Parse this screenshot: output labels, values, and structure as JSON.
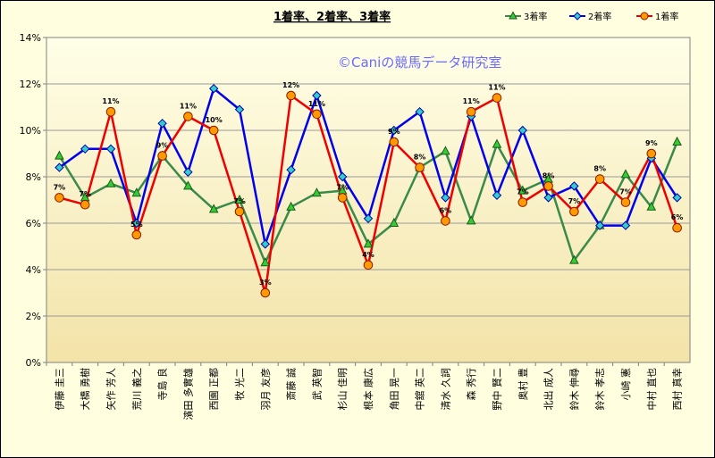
{
  "chart_data": {
    "type": "line",
    "title": "1着率、2着率、3着率",
    "watermark": "©Caniの競馬データ研究室",
    "ylim": [
      0,
      14
    ],
    "yticks": [
      "0%",
      "2%",
      "4%",
      "6%",
      "8%",
      "10%",
      "12%",
      "14%"
    ],
    "grid": true,
    "legend_position": "top-right",
    "categories": [
      "伊藤 圭三",
      "大橋 勇樹",
      "矢作 芳人",
      "荒川 義之",
      "寺島 良",
      "濱田 多實雄",
      "西園 正都",
      "牧 光二",
      "羽月 友彦",
      "斎藤 誠",
      "武 英智",
      "杉山 佳明",
      "根本 康広",
      "角田 晃一",
      "中舘 英二",
      "清水 久詞",
      "森 秀行",
      "野中 賢二",
      "奥村 豊",
      "北出 成人",
      "鈴木 伸尋",
      "鈴木 孝志",
      "小崎 憲",
      "中村 直也",
      "西村 真幸"
    ],
    "series": [
      {
        "name": "3着率",
        "color": "#3a8a4a",
        "marker": "triangle",
        "marker_fill": "#33cc33",
        "values": [
          8.9,
          7.1,
          7.7,
          7.3,
          8.9,
          7.6,
          6.6,
          7.0,
          4.3,
          6.7,
          7.3,
          7.4,
          5.1,
          6.0,
          8.4,
          9.1,
          6.1,
          9.4,
          7.4,
          7.9,
          4.4,
          5.9,
          8.1,
          6.7,
          9.5
        ],
        "labels": []
      },
      {
        "name": "2着率",
        "color": "#0000ee",
        "marker": "diamond",
        "marker_fill": "#33cccc",
        "values": [
          8.4,
          9.2,
          9.2,
          6.0,
          10.3,
          8.2,
          11.8,
          10.9,
          5.1,
          8.3,
          11.5,
          8.0,
          6.2,
          10.0,
          10.8,
          7.1,
          10.6,
          7.2,
          10.0,
          7.1,
          7.6,
          5.9,
          5.9,
          8.8,
          7.1
        ],
        "labels": []
      },
      {
        "name": "1着率",
        "color": "#ee0000",
        "marker": "circle",
        "marker_fill": "#ff9900",
        "values": [
          7.1,
          6.8,
          10.8,
          5.5,
          8.9,
          10.6,
          10.0,
          6.5,
          3.0,
          11.5,
          10.7,
          7.1,
          4.2,
          9.5,
          8.4,
          6.1,
          10.8,
          11.4,
          6.9,
          7.6,
          6.5,
          7.9,
          6.9,
          9.0,
          5.8
        ],
        "labels": [
          "7%",
          "7%",
          "11%",
          "5%",
          "9%",
          "11%",
          "10%",
          "7%",
          "3%",
          "12%",
          "11%",
          "7%",
          "4%",
          "9%",
          "8%",
          "6%",
          "11%",
          "11%",
          "7%",
          "8%",
          "7%",
          "8%",
          "7%",
          "9%",
          "6%"
        ]
      }
    ]
  }
}
